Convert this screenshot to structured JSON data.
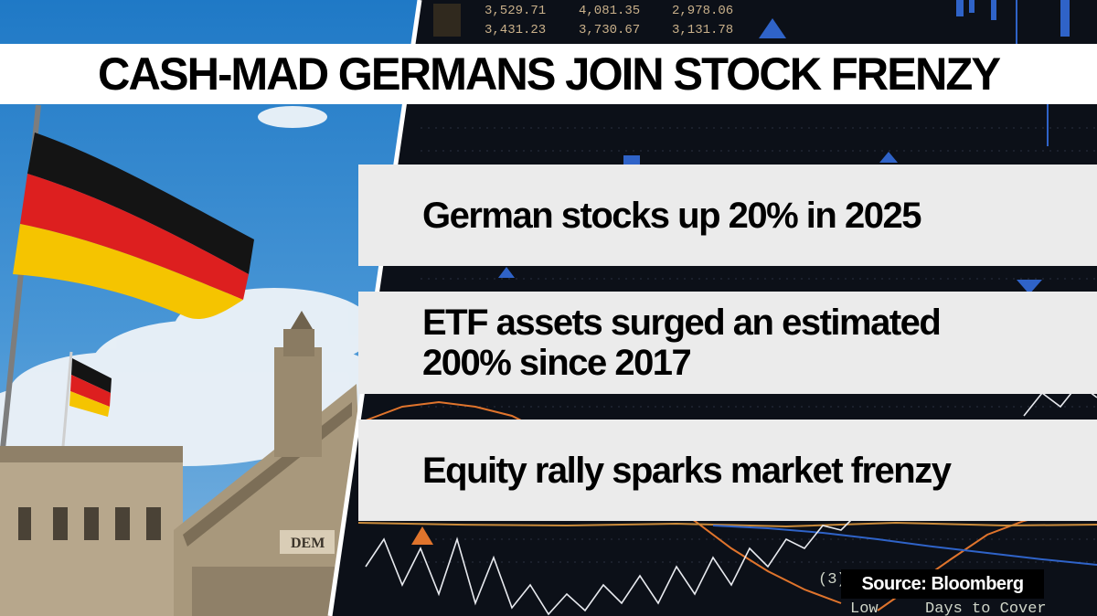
{
  "headline": "CASH-MAD GERMANS JOIN STOCK FRENZY",
  "bullets": [
    "German stocks up 20% in 2025",
    "ETF assets surged an estimated\n200% since 2017",
    "Equity rally sparks market frenzy"
  ],
  "source": "Source: Bloomberg",
  "background_screen": {
    "ticker_row_1": [
      "3,529.71",
      "4,081.35",
      "2,978.06"
    ],
    "ticker_row_2": [
      "3,431.23",
      "3,730.67",
      "3,131.78"
    ],
    "bottom_line_1": "(3)",
    "bottom_line_2": "Low",
    "bottom_line_3": "Days to Cover"
  },
  "building_inscription": "DEM",
  "colors": {
    "flag_black": "#141414",
    "flag_red": "#dd1f1f",
    "flag_gold": "#f5c400",
    "sky": "#3f8fd0",
    "bullet_bg": "#ebebeb",
    "headline_bg": "#ffffff"
  }
}
